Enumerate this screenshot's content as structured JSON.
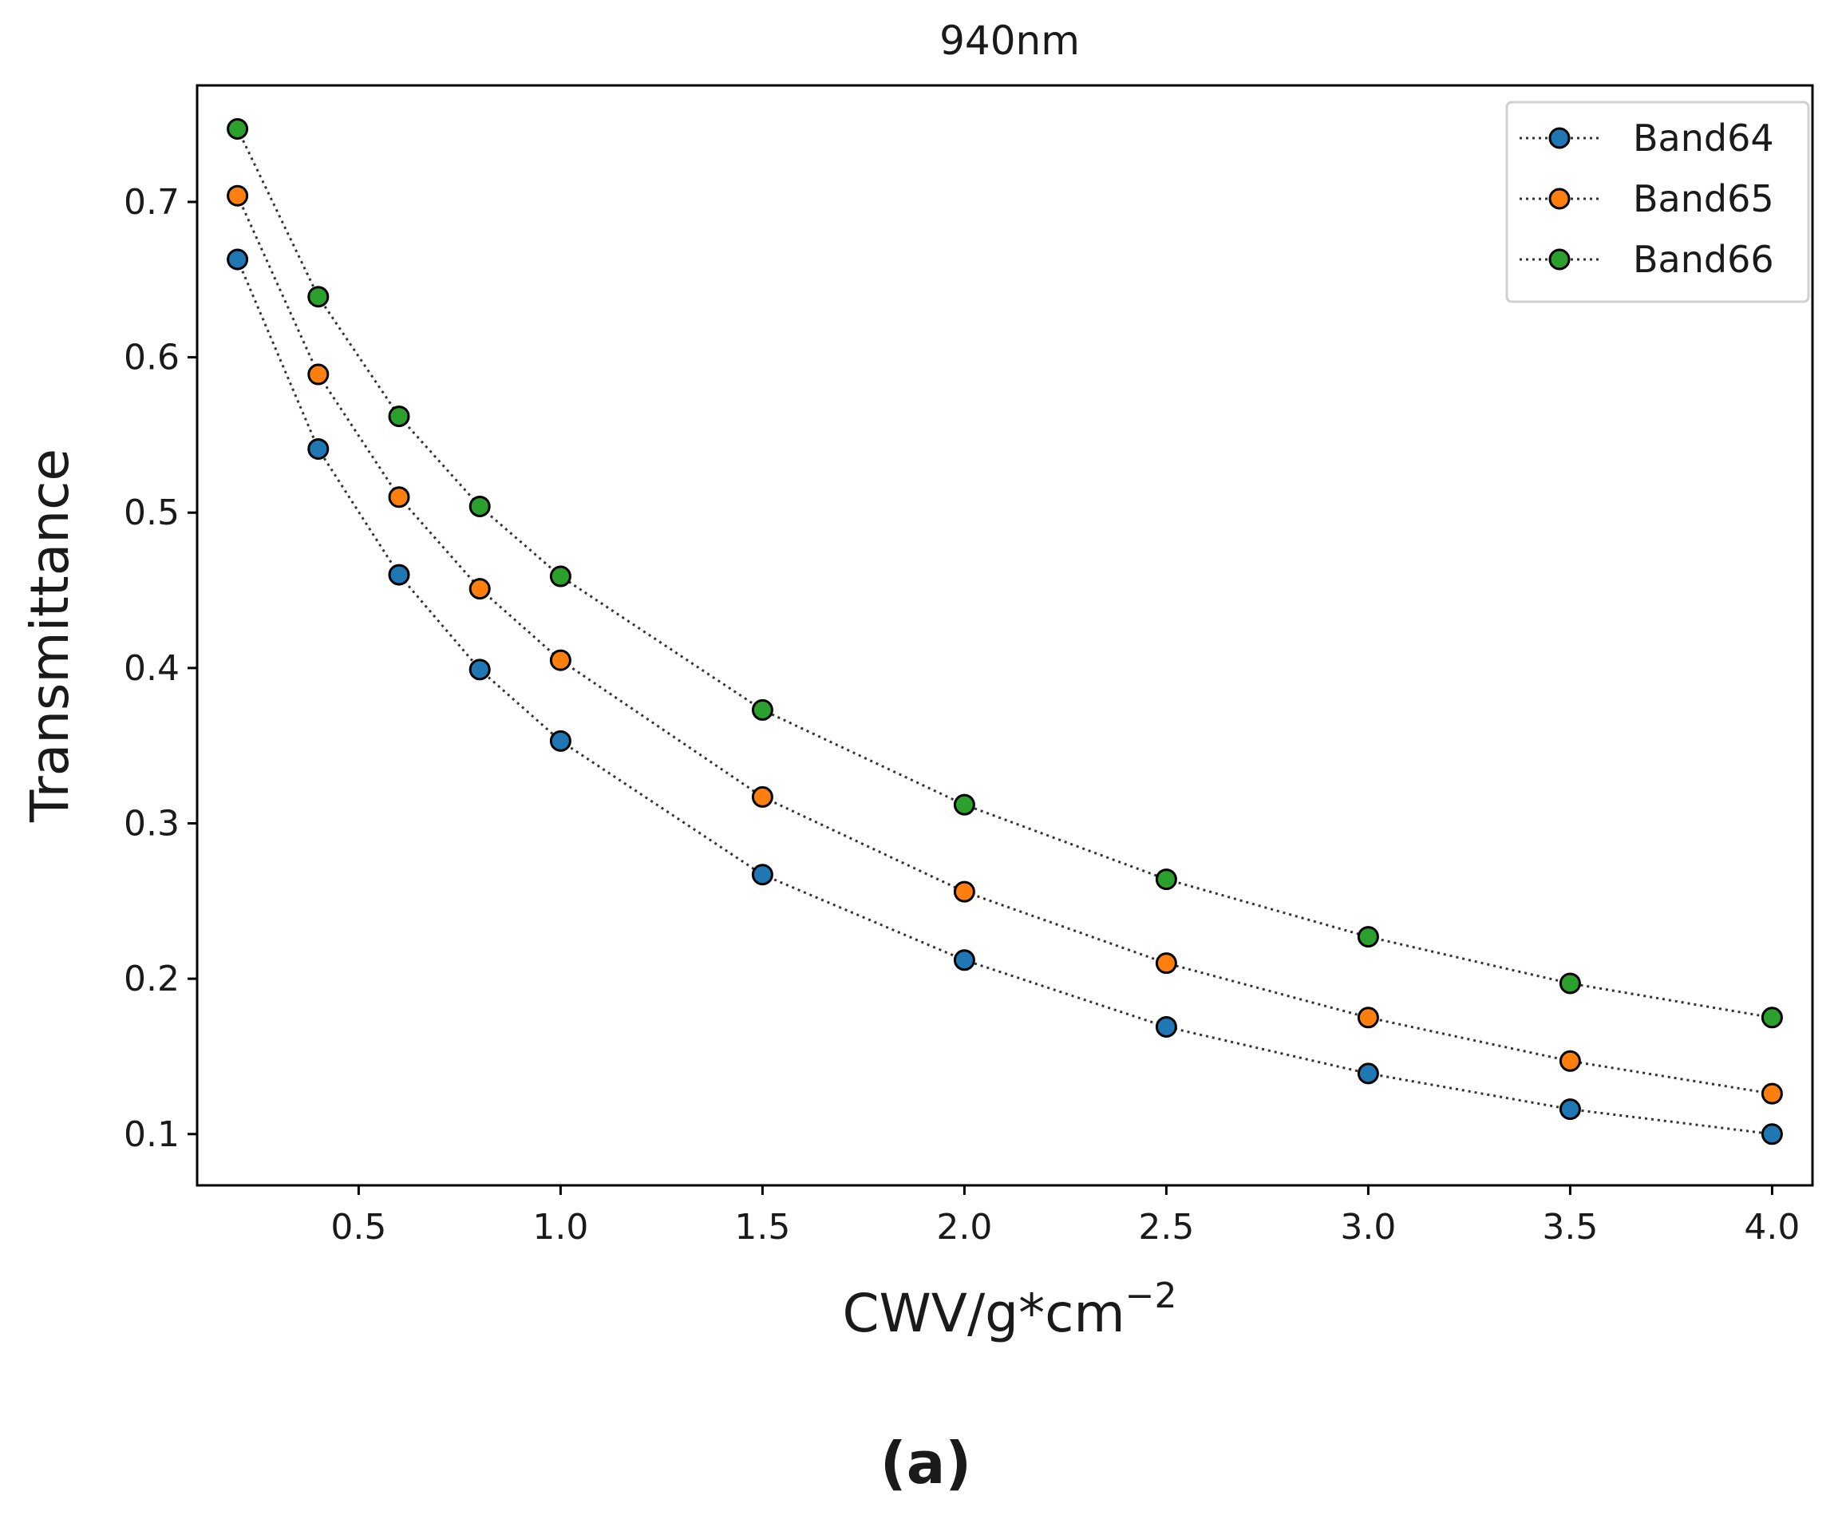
{
  "chart_data": {
    "type": "line",
    "title": "940nm",
    "xlabel": "CWV/g*cm",
    "xlabel_superscript": "−2",
    "ylabel": "Transmittance",
    "xlim": [
      0.1,
      4.1
    ],
    "ylim": [
      0.067,
      0.775
    ],
    "xticks": [
      0.5,
      1.0,
      1.5,
      2.0,
      2.5,
      3.0,
      3.5,
      4.0
    ],
    "xtick_labels": [
      "0.5",
      "1.0",
      "1.5",
      "2.0",
      "2.5",
      "3.0",
      "3.5",
      "4.0"
    ],
    "yticks": [
      0.1,
      0.2,
      0.3,
      0.4,
      0.5,
      0.6,
      0.7
    ],
    "ytick_labels": [
      "0.1",
      "0.2",
      "0.3",
      "0.4",
      "0.5",
      "0.6",
      "0.7"
    ],
    "grid": false,
    "legend_position": "top-right",
    "line_style": "dotted",
    "marker": "circle",
    "x": [
      0.2,
      0.4,
      0.6,
      0.8,
      1.0,
      1.5,
      2.0,
      2.5,
      3.0,
      3.5,
      4.0
    ],
    "series": [
      {
        "name": "Band64",
        "color": "#1f77b4",
        "values": [
          0.663,
          0.541,
          0.46,
          0.399,
          0.353,
          0.267,
          0.212,
          0.169,
          0.139,
          0.116,
          0.1
        ]
      },
      {
        "name": "Band65",
        "color": "#ff7f0e",
        "values": [
          0.704,
          0.589,
          0.51,
          0.451,
          0.405,
          0.317,
          0.256,
          0.21,
          0.175,
          0.147,
          0.126
        ]
      },
      {
        "name": "Band66",
        "color": "#2ca02c",
        "values": [
          0.747,
          0.639,
          0.562,
          0.504,
          0.459,
          0.373,
          0.312,
          0.264,
          0.227,
          0.197,
          0.175
        ]
      }
    ]
  },
  "caption": "(a)"
}
